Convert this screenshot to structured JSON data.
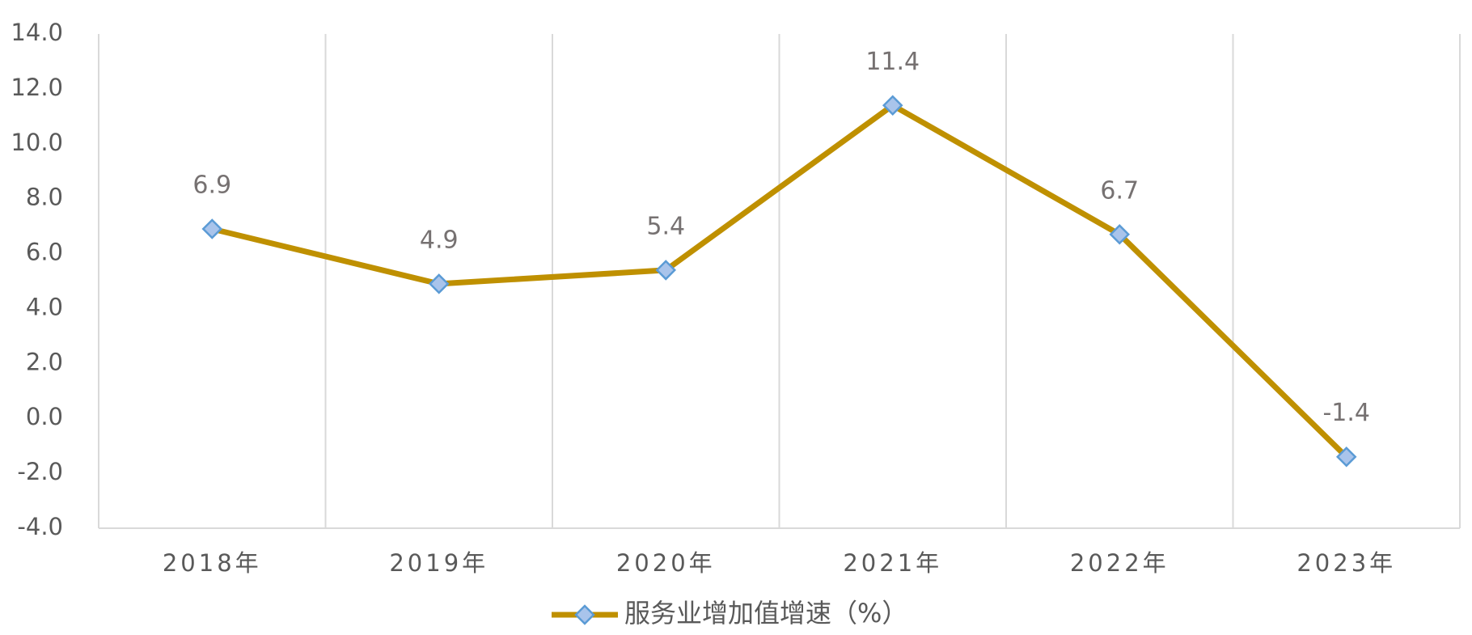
{
  "chart_data": {
    "type": "line",
    "categories": [
      "2018年",
      "2019年",
      "2020年",
      "2021年",
      "2022年",
      "2023年"
    ],
    "series": [
      {
        "name": "服务业增加值增速（%）",
        "color": "#bf9000",
        "marker_fill": "#a9c4eb",
        "marker_stroke": "#5b9bd5",
        "values": [
          6.9,
          4.9,
          5.4,
          11.4,
          6.7,
          -1.4
        ]
      }
    ],
    "ylim": [
      -4,
      14
    ],
    "yticks": [
      {
        "value": -4,
        "label": "-4.0"
      },
      {
        "value": -2,
        "label": "-2.0"
      },
      {
        "value": 0,
        "label": "0.0"
      },
      {
        "value": 2,
        "label": "2.0"
      },
      {
        "value": 4,
        "label": "4.0"
      },
      {
        "value": 6,
        "label": "6.0"
      },
      {
        "value": 8,
        "label": "8.0"
      },
      {
        "value": 10,
        "label": "10.0"
      },
      {
        "value": 12,
        "label": "12.0"
      },
      {
        "value": 14,
        "label": "14.0"
      }
    ],
    "legend": "bottom"
  }
}
